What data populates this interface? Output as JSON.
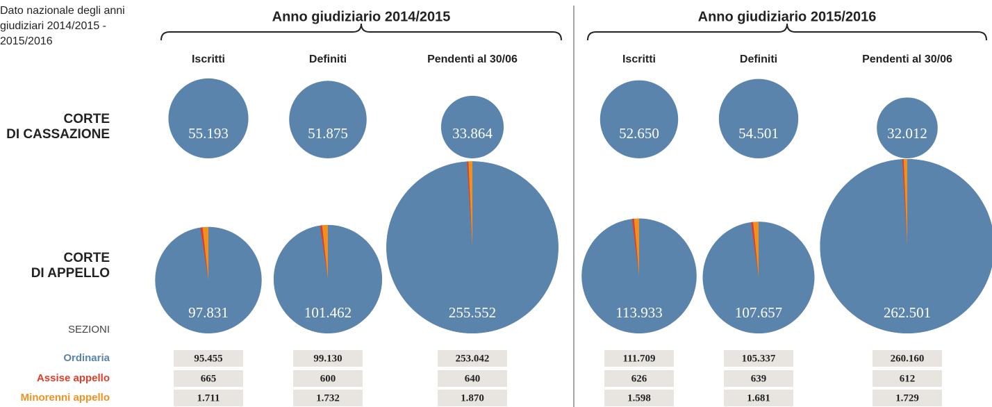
{
  "chart_data": {
    "type": "bubble-pie",
    "title": [
      "Dato nazionale degli anni",
      "giudiziari 2014/2015 -",
      "2015/2016"
    ],
    "rows": [
      [
        "CORTE",
        "DI CASSAZIONE"
      ],
      [
        "CORTE",
        "DI APPELLO"
      ]
    ],
    "legend_title": "SEZIONI",
    "sections": [
      {
        "name": "Ordinaria",
        "color": "#5b84ad"
      },
      {
        "name": "Assise appello",
        "color": "#e03c28"
      },
      {
        "name": "Minorenni appello",
        "color": "#f0901e"
      }
    ],
    "panels": [
      {
        "title": "Anno giudiziario 2014/2015",
        "columns": [
          "Iscritti",
          "Definiti",
          "Pendenti al 30/06"
        ],
        "cassazione": {
          "values": [
            55193,
            51875,
            33864
          ],
          "value_labels": [
            "55.193",
            "51.875",
            "33.864"
          ]
        },
        "appello": {
          "values": [
            97831,
            101462,
            255552
          ],
          "value_labels": [
            "97.831",
            "101.462",
            "255.552"
          ],
          "sections": [
            [
              95455,
              665,
              1711
            ],
            [
              99130,
              600,
              1732
            ],
            [
              253042,
              640,
              1870
            ]
          ],
          "section_labels": [
            [
              "95.455",
              "665",
              "1.711"
            ],
            [
              "99.130",
              "600",
              "1.732"
            ],
            [
              "253.042",
              "640",
              "1.870"
            ]
          ]
        }
      },
      {
        "title": "Anno giudiziario 2015/2016",
        "columns": [
          "Iscritti",
          "Definiti",
          "Pendenti al 30/06"
        ],
        "cassazione": {
          "values": [
            52650,
            54501,
            32012
          ],
          "value_labels": [
            "52.650",
            "54.501",
            "32.012"
          ]
        },
        "appello": {
          "values": [
            113933,
            107657,
            262501
          ],
          "value_labels": [
            "113.933",
            "107.657",
            "262.501"
          ],
          "sections": [
            [
              111709,
              626,
              1598
            ],
            [
              105337,
              639,
              1681
            ],
            [
              260160,
              612,
              1729
            ]
          ],
          "section_labels": [
            [
              "111.709",
              "626",
              "1.598"
            ],
            [
              "105.337",
              "639",
              "1.681"
            ],
            [
              "260.160",
              "612",
              "1.729"
            ]
          ]
        }
      }
    ]
  }
}
